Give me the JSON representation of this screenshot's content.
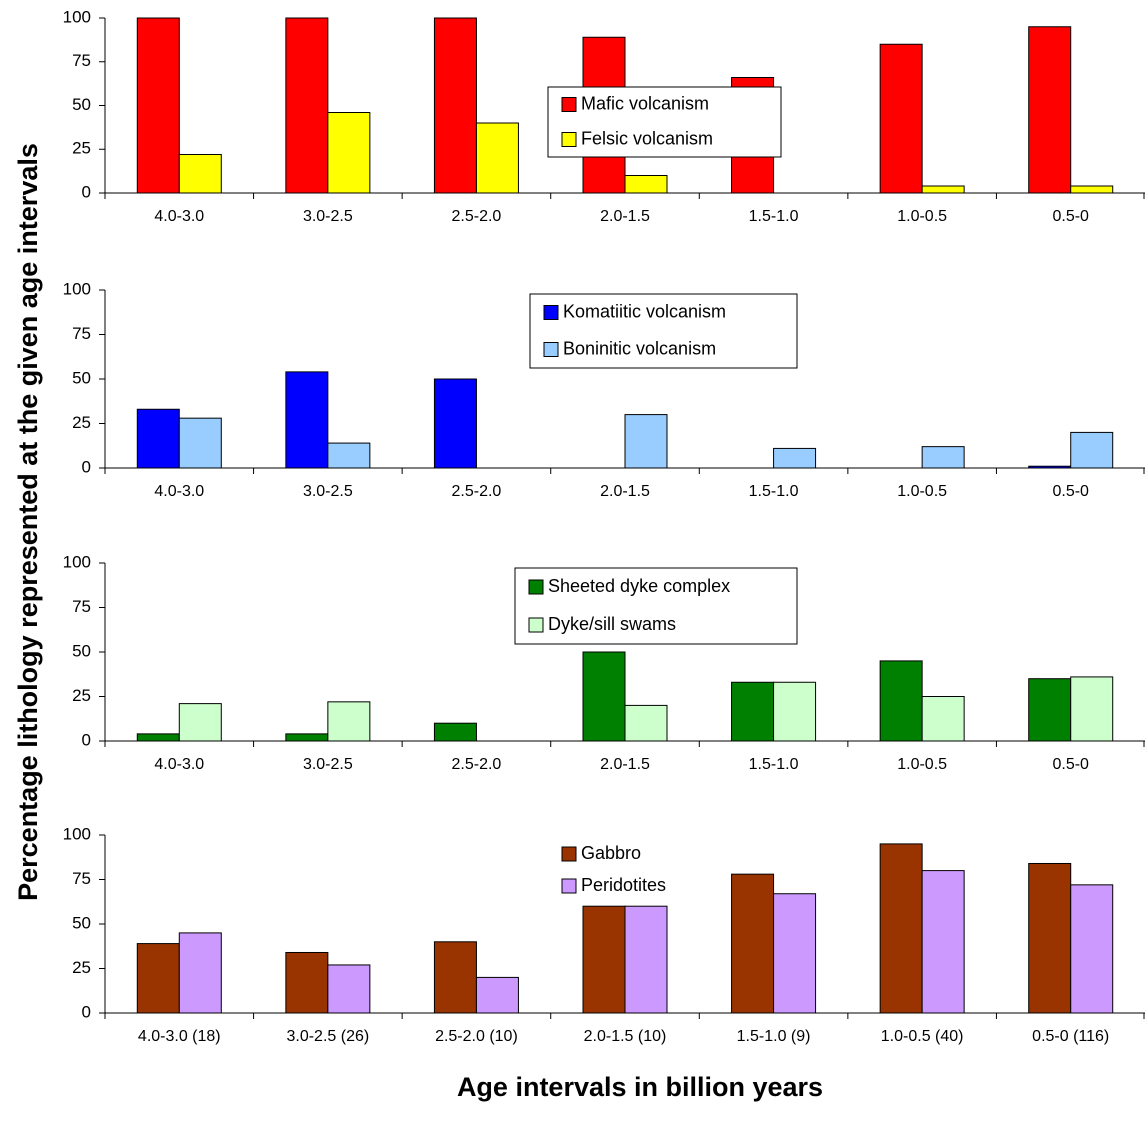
{
  "y_label": "Percentage lithology represented at the given age intervals",
  "x_label": "Age intervals in billion years",
  "chart_data": [
    {
      "type": "bar",
      "categories": [
        "4.0-3.0",
        "3.0-2.5",
        "2.5-2.0",
        "2.0-1.5",
        "1.5-1.0",
        "1.0-0.5",
        "0.5-0"
      ],
      "series": [
        {
          "name": "Mafic volcanism",
          "color": "#ff0000",
          "values": [
            100,
            100,
            100,
            89,
            66,
            85,
            95
          ]
        },
        {
          "name": "Felsic volcanism",
          "color": "#ffff00",
          "values": [
            22,
            46,
            40,
            10,
            0,
            4,
            4
          ]
        }
      ],
      "ylim": [
        0,
        100
      ],
      "yticks": [
        0,
        25,
        50,
        75,
        100
      ]
    },
    {
      "type": "bar",
      "categories": [
        "4.0-3.0",
        "3.0-2.5",
        "2.5-2.0",
        "2.0-1.5",
        "1.5-1.0",
        "1.0-0.5",
        "0.5-0"
      ],
      "series": [
        {
          "name": "Komatiitic volcanism",
          "color": "#0000ff",
          "values": [
            33,
            54,
            50,
            0,
            0,
            0,
            1
          ]
        },
        {
          "name": "Boninitic volcanism",
          "color": "#99ccff",
          "values": [
            28,
            14,
            0,
            30,
            11,
            12,
            20
          ]
        }
      ],
      "ylim": [
        0,
        100
      ],
      "yticks": [
        0,
        25,
        50,
        75,
        100
      ]
    },
    {
      "type": "bar",
      "categories": [
        "4.0-3.0",
        "3.0-2.5",
        "2.5-2.0",
        "2.0-1.5",
        "1.5-1.0",
        "1.0-0.5",
        "0.5-0"
      ],
      "series": [
        {
          "name": "Sheeted dyke complex",
          "color": "#008000",
          "values": [
            4,
            4,
            10,
            50,
            33,
            45,
            35
          ]
        },
        {
          "name": "Dyke/sill swams",
          "color": "#ccffcc",
          "values": [
            21,
            22,
            0,
            20,
            33,
            25,
            36
          ]
        }
      ],
      "ylim": [
        0,
        100
      ],
      "yticks": [
        0,
        25,
        50,
        75,
        100
      ]
    },
    {
      "type": "bar",
      "categories": [
        "4.0-3.0 (18)",
        "3.0-2.5 (26)",
        "2.5-2.0 (10)",
        "2.0-1.5 (10)",
        "1.5-1.0 (9)",
        "1.0-0.5 (40)",
        "0.5-0 (116)"
      ],
      "series": [
        {
          "name": "Gabbro",
          "color": "#993300",
          "values": [
            39,
            34,
            40,
            60,
            78,
            95,
            84
          ]
        },
        {
          "name": "Peridotites",
          "color": "#cc99ff",
          "values": [
            45,
            27,
            20,
            60,
            67,
            80,
            72
          ]
        }
      ],
      "ylim": [
        0,
        100
      ],
      "yticks": [
        0,
        25,
        50,
        75,
        100
      ]
    }
  ]
}
